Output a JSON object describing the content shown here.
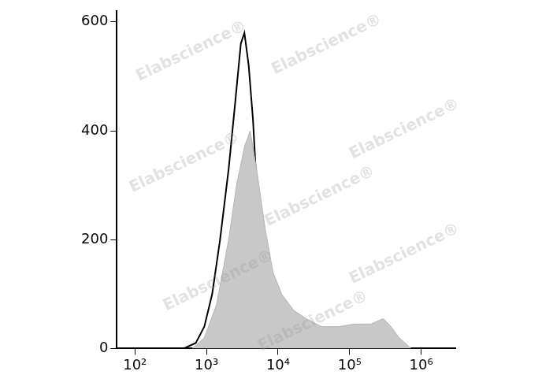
{
  "chart_data": {
    "type": "line",
    "log": "x",
    "grid": false,
    "xlim": [
      56,
      3000000
    ],
    "xticks": [
      {
        "value": 100,
        "label": "10²"
      },
      {
        "value": 1000,
        "label": "10³"
      },
      {
        "value": 10000,
        "label": "10⁴"
      },
      {
        "value": 100000,
        "label": "10⁵"
      },
      {
        "value": 1000000,
        "label": "10⁶"
      }
    ],
    "ylim": [
      0,
      620
    ],
    "yticks": [
      0,
      200,
      400,
      600
    ],
    "annotations": [
      "Elabscience®"
    ],
    "series": [
      {
        "type": "area",
        "color": "#c8c8c8",
        "x": [
          631,
          933,
          1380,
          2042,
          2630,
          3388,
          4074,
          5012,
          6607,
          8511,
          11220,
          16600,
          24550,
          40740,
          69180,
          117500,
          199500,
          295100,
          380200,
          489800,
          724400
        ],
        "values": [
          0,
          20,
          80,
          200,
          300,
          370,
          400,
          330,
          220,
          140,
          100,
          70,
          55,
          40,
          40,
          45,
          45,
          55,
          40,
          20,
          0
        ]
      },
      {
        "type": "line",
        "color": "#000000",
        "x": [
          479,
          708,
          933,
          1202,
          1549,
          2042,
          2512,
          3020,
          3388,
          3890,
          4467,
          5012,
          6310,
          7586,
          9772,
          12590
        ],
        "values": [
          0,
          10,
          40,
          100,
          200,
          330,
          450,
          560,
          580,
          520,
          420,
          300,
          170,
          70,
          15,
          0
        ]
      }
    ]
  }
}
